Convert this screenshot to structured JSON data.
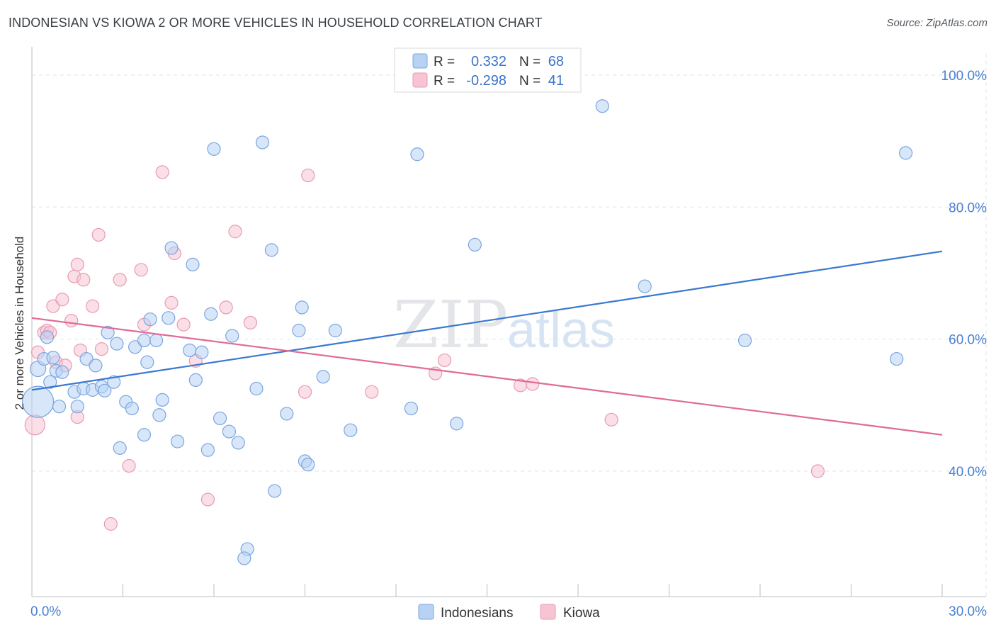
{
  "header": {
    "title": "INDONESIAN VS KIOWA 2 OR MORE VEHICLES IN HOUSEHOLD CORRELATION CHART",
    "source": "Source: ZipAtlas.com"
  },
  "watermark": {
    "zip": "ZIP",
    "atlas": "atlas"
  },
  "colors": {
    "indonesians_fill": "#b8d2f4",
    "indonesians_stroke": "#7aa6e0",
    "indonesians_line": "#3a78d0",
    "kiowa_fill": "#f8c4d4",
    "kiowa_stroke": "#e89ab2",
    "kiowa_line": "#e06a96",
    "tick_label": "#4a7fd4"
  },
  "legend": {
    "rows": [
      {
        "r_label": "R =",
        "r_value": "0.332",
        "n_label": "N =",
        "n_value": "68"
      },
      {
        "r_label": "R =",
        "r_value": "-0.298",
        "n_label": "N =",
        "n_value": "41"
      }
    ]
  },
  "chart_data": {
    "type": "scatter",
    "title": "INDONESIAN VS KIOWA 2 OR MORE VEHICLES IN HOUSEHOLD CORRELATION CHART",
    "xlabel": "",
    "ylabel": "2 or more Vehicles in Household",
    "xlim": [
      0,
      30
    ],
    "ylim": [
      21,
      103
    ],
    "x_tick_labels": [
      {
        "value": 0,
        "label": "0.0%"
      },
      {
        "value": 30,
        "label": "30.0%"
      }
    ],
    "y_tick_labels": [
      {
        "value": 100,
        "label": "100.0%"
      },
      {
        "value": 80,
        "label": "80.0%"
      },
      {
        "value": 60,
        "label": "60.0%"
      },
      {
        "value": 40,
        "label": "40.0%"
      }
    ],
    "grid": true,
    "legend_placement": "top-center",
    "series": [
      {
        "name": "Indonesians",
        "r": 0.332,
        "n": 68,
        "trend": {
          "x": [
            0,
            30
          ],
          "y": [
            52.3,
            73.3
          ]
        },
        "points": [
          {
            "x": 0.2,
            "y": 50.5,
            "s": 22
          },
          {
            "x": 0.2,
            "y": 55.5,
            "s": 11
          },
          {
            "x": 0.4,
            "y": 57.0,
            "s": 9
          },
          {
            "x": 0.5,
            "y": 60.3,
            "s": 9
          },
          {
            "x": 0.6,
            "y": 53.5,
            "s": 9
          },
          {
            "x": 0.7,
            "y": 57.2,
            "s": 9
          },
          {
            "x": 0.8,
            "y": 55.2,
            "s": 9
          },
          {
            "x": 0.9,
            "y": 49.8,
            "s": 9
          },
          {
            "x": 1.0,
            "y": 55.0,
            "s": 9
          },
          {
            "x": 1.4,
            "y": 52.0,
            "s": 9
          },
          {
            "x": 1.5,
            "y": 49.8,
            "s": 9
          },
          {
            "x": 1.7,
            "y": 52.5,
            "s": 9
          },
          {
            "x": 1.8,
            "y": 57.0,
            "s": 9
          },
          {
            "x": 2.0,
            "y": 52.3,
            "s": 9
          },
          {
            "x": 2.1,
            "y": 56.0,
            "s": 9
          },
          {
            "x": 2.3,
            "y": 52.8,
            "s": 9
          },
          {
            "x": 2.4,
            "y": 52.2,
            "s": 9
          },
          {
            "x": 2.5,
            "y": 61.0,
            "s": 9
          },
          {
            "x": 2.7,
            "y": 53.5,
            "s": 9
          },
          {
            "x": 2.8,
            "y": 59.3,
            "s": 9
          },
          {
            "x": 2.9,
            "y": 43.5,
            "s": 9
          },
          {
            "x": 3.1,
            "y": 50.5,
            "s": 9
          },
          {
            "x": 3.3,
            "y": 49.5,
            "s": 9
          },
          {
            "x": 3.4,
            "y": 58.8,
            "s": 9
          },
          {
            "x": 3.7,
            "y": 45.5,
            "s": 9
          },
          {
            "x": 3.7,
            "y": 59.8,
            "s": 9
          },
          {
            "x": 3.8,
            "y": 56.5,
            "s": 9
          },
          {
            "x": 3.9,
            "y": 63.0,
            "s": 9
          },
          {
            "x": 4.1,
            "y": 59.8,
            "s": 9
          },
          {
            "x": 4.2,
            "y": 48.5,
            "s": 9
          },
          {
            "x": 4.3,
            "y": 50.8,
            "s": 9
          },
          {
            "x": 4.5,
            "y": 63.2,
            "s": 9
          },
          {
            "x": 4.6,
            "y": 73.8,
            "s": 9
          },
          {
            "x": 4.8,
            "y": 44.5,
            "s": 9
          },
          {
            "x": 5.2,
            "y": 58.3,
            "s": 9
          },
          {
            "x": 5.3,
            "y": 71.3,
            "s": 9
          },
          {
            "x": 5.4,
            "y": 53.8,
            "s": 9
          },
          {
            "x": 5.6,
            "y": 58.0,
            "s": 9
          },
          {
            "x": 5.8,
            "y": 43.2,
            "s": 9
          },
          {
            "x": 5.9,
            "y": 63.8,
            "s": 9
          },
          {
            "x": 6.0,
            "y": 88.8,
            "s": 9
          },
          {
            "x": 6.2,
            "y": 48.0,
            "s": 9
          },
          {
            "x": 6.5,
            "y": 46.0,
            "s": 9
          },
          {
            "x": 6.6,
            "y": 60.5,
            "s": 9
          },
          {
            "x": 6.8,
            "y": 44.3,
            "s": 9
          },
          {
            "x": 7.1,
            "y": 28.2,
            "s": 9
          },
          {
            "x": 7.0,
            "y": 26.8,
            "s": 9
          },
          {
            "x": 7.4,
            "y": 52.5,
            "s": 9
          },
          {
            "x": 7.6,
            "y": 89.8,
            "s": 9
          },
          {
            "x": 7.9,
            "y": 73.5,
            "s": 9
          },
          {
            "x": 8.0,
            "y": 37.0,
            "s": 9
          },
          {
            "x": 8.4,
            "y": 48.7,
            "s": 9
          },
          {
            "x": 8.8,
            "y": 61.3,
            "s": 9
          },
          {
            "x": 9.0,
            "y": 41.5,
            "s": 9
          },
          {
            "x": 9.1,
            "y": 41.0,
            "s": 9
          },
          {
            "x": 8.9,
            "y": 64.8,
            "s": 9
          },
          {
            "x": 9.6,
            "y": 54.3,
            "s": 9
          },
          {
            "x": 10.0,
            "y": 61.3,
            "s": 9
          },
          {
            "x": 10.5,
            "y": 46.2,
            "s": 9
          },
          {
            "x": 12.5,
            "y": 49.5,
            "s": 9
          },
          {
            "x": 12.7,
            "y": 88.0,
            "s": 9
          },
          {
            "x": 14.0,
            "y": 47.2,
            "s": 9
          },
          {
            "x": 14.6,
            "y": 74.3,
            "s": 9
          },
          {
            "x": 18.8,
            "y": 95.3,
            "s": 9
          },
          {
            "x": 20.2,
            "y": 68.0,
            "s": 9
          },
          {
            "x": 23.5,
            "y": 59.8,
            "s": 9
          },
          {
            "x": 28.5,
            "y": 57.0,
            "s": 9
          },
          {
            "x": 28.8,
            "y": 88.2,
            "s": 9
          }
        ]
      },
      {
        "name": "Kiowa",
        "r": -0.298,
        "n": 41,
        "trend": {
          "x": [
            0,
            30
          ],
          "y": [
            63.2,
            45.5
          ]
        },
        "points": [
          {
            "x": 0.1,
            "y": 47.0,
            "s": 14
          },
          {
            "x": 0.2,
            "y": 58.0,
            "s": 9
          },
          {
            "x": 0.4,
            "y": 61.0,
            "s": 9
          },
          {
            "x": 0.5,
            "y": 61.3,
            "s": 9
          },
          {
            "x": 0.6,
            "y": 61.0,
            "s": 9
          },
          {
            "x": 0.7,
            "y": 65.0,
            "s": 9
          },
          {
            "x": 0.8,
            "y": 56.5,
            "s": 9
          },
          {
            "x": 1.0,
            "y": 66.0,
            "s": 9
          },
          {
            "x": 1.1,
            "y": 56.0,
            "s": 9
          },
          {
            "x": 1.3,
            "y": 62.8,
            "s": 9
          },
          {
            "x": 1.5,
            "y": 48.2,
            "s": 9
          },
          {
            "x": 1.4,
            "y": 69.5,
            "s": 9
          },
          {
            "x": 1.5,
            "y": 71.3,
            "s": 9
          },
          {
            "x": 1.6,
            "y": 58.3,
            "s": 9
          },
          {
            "x": 1.7,
            "y": 69.0,
            "s": 9
          },
          {
            "x": 2.0,
            "y": 65.0,
            "s": 9
          },
          {
            "x": 2.2,
            "y": 75.8,
            "s": 9
          },
          {
            "x": 2.3,
            "y": 58.5,
            "s": 9
          },
          {
            "x": 2.6,
            "y": 32.0,
            "s": 9
          },
          {
            "x": 2.9,
            "y": 69.0,
            "s": 9
          },
          {
            "x": 3.2,
            "y": 40.8,
            "s": 9
          },
          {
            "x": 3.6,
            "y": 70.5,
            "s": 9
          },
          {
            "x": 3.7,
            "y": 62.2,
            "s": 9
          },
          {
            "x": 4.3,
            "y": 85.3,
            "s": 9
          },
          {
            "x": 4.6,
            "y": 65.5,
            "s": 9
          },
          {
            "x": 4.7,
            "y": 73.0,
            "s": 9
          },
          {
            "x": 5.0,
            "y": 62.2,
            "s": 9
          },
          {
            "x": 5.4,
            "y": 56.7,
            "s": 9
          },
          {
            "x": 5.8,
            "y": 35.7,
            "s": 9
          },
          {
            "x": 6.4,
            "y": 64.8,
            "s": 9
          },
          {
            "x": 6.7,
            "y": 76.3,
            "s": 9
          },
          {
            "x": 7.2,
            "y": 62.5,
            "s": 9
          },
          {
            "x": 9.0,
            "y": 52.0,
            "s": 9
          },
          {
            "x": 9.1,
            "y": 84.8,
            "s": 9
          },
          {
            "x": 11.2,
            "y": 52.0,
            "s": 9
          },
          {
            "x": 13.3,
            "y": 54.8,
            "s": 9
          },
          {
            "x": 13.6,
            "y": 56.8,
            "s": 9
          },
          {
            "x": 16.1,
            "y": 53.0,
            "s": 9
          },
          {
            "x": 16.5,
            "y": 53.2,
            "s": 9
          },
          {
            "x": 19.1,
            "y": 47.8,
            "s": 9
          },
          {
            "x": 25.9,
            "y": 40.0,
            "s": 9
          }
        ]
      }
    ]
  }
}
